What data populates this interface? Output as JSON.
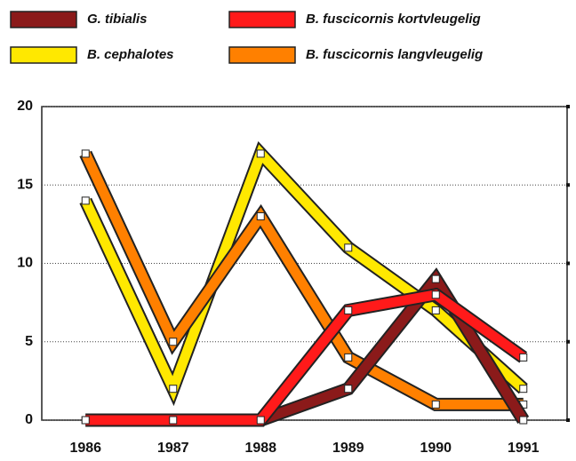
{
  "chart_data": {
    "type": "line",
    "categories": [
      "1986",
      "1987",
      "1988",
      "1989",
      "1990",
      "1991"
    ],
    "series": [
      {
        "name": "G. tibialis",
        "color": "#8b1a1a",
        "values": [
          0,
          0,
          0,
          2,
          9,
          0
        ]
      },
      {
        "name": "B. fuscicornis kortvleugelig",
        "color": "#ff1a1a",
        "values": [
          0,
          0,
          0,
          7,
          8,
          4
        ]
      },
      {
        "name": "B. cephalotes",
        "color": "#ffe800",
        "values": [
          14,
          2,
          17,
          11,
          7,
          2
        ]
      },
      {
        "name": "B. fuscicornis langvleugelig",
        "color": "#ff8000",
        "values": [
          17,
          5,
          13,
          4,
          1,
          1
        ]
      }
    ],
    "ylim": [
      0,
      20
    ],
    "yticks": [
      0,
      5,
      10,
      15,
      20
    ],
    "grid": true
  }
}
